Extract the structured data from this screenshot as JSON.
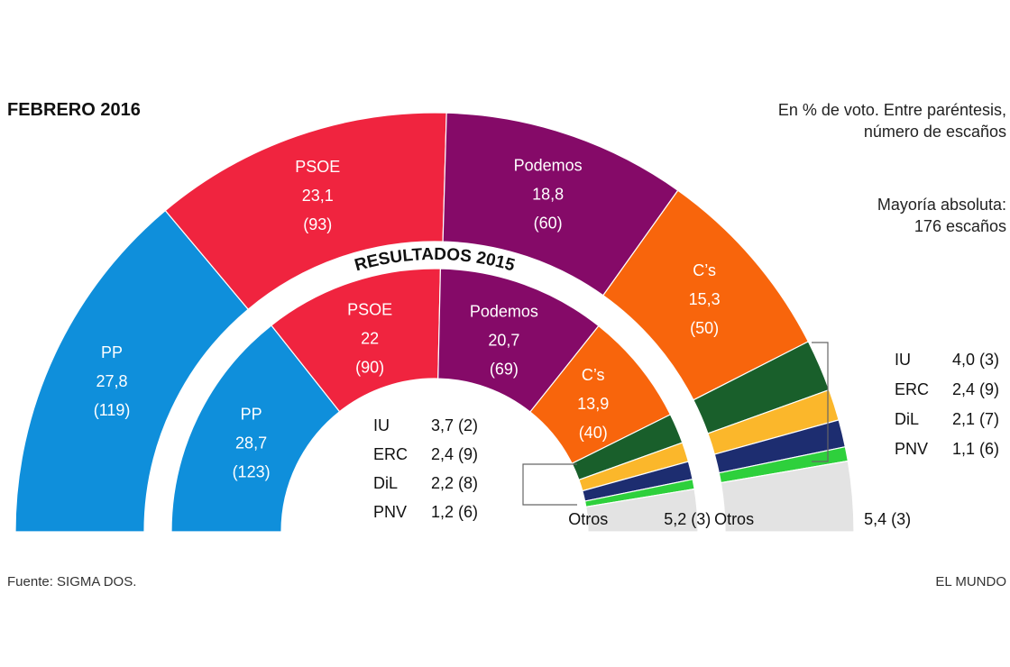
{
  "header": {
    "title": "FEBRERO 2016",
    "note_line1": "En % de voto. Entre paréntesis,",
    "note_line2": "número de escaños",
    "majority_line1": "Mayoría absoluta:",
    "majority_line2": "176 escaños"
  },
  "footer": {
    "source": "Fuente: SIGMA DOS.",
    "brand": "EL MUNDO"
  },
  "chart_data": [
    {
      "type": "pie",
      "title": "FEBRERO 2016",
      "series": [
        {
          "name": "PP",
          "value_label": "27,8",
          "seats_label": "(119)",
          "value": 27.8,
          "seats": 119,
          "color": "#0f8fdb"
        },
        {
          "name": "PSOE",
          "value_label": "23,1",
          "seats_label": "(93)",
          "value": 23.1,
          "seats": 93,
          "color": "#f0243f"
        },
        {
          "name": "Podemos",
          "value_label": "18,8",
          "seats_label": "(60)",
          "value": 18.8,
          "seats": 60,
          "color": "#850a68"
        },
        {
          "name": "C’s",
          "value_label": "15,3",
          "seats_label": "(50)",
          "value": 15.3,
          "seats": 50,
          "color": "#f8650c"
        },
        {
          "name": "IU",
          "value_label": "4,0 (3)",
          "value": 4.0,
          "seats": 3,
          "color": "#195f2b"
        },
        {
          "name": "ERC",
          "value_label": "2,4 (9)",
          "value": 2.4,
          "seats": 9,
          "color": "#fbb72b"
        },
        {
          "name": "DiL",
          "value_label": "2,1 (7)",
          "value": 2.1,
          "seats": 7,
          "color": "#1d2d70"
        },
        {
          "name": "PNV",
          "value_label": "1,1 (6)",
          "value": 1.1,
          "seats": 6,
          "color": "#2ed03c"
        },
        {
          "name": "Otros",
          "value_label": "5,4 (3)",
          "value": 5.4,
          "seats": 3,
          "color": "#e3e3e3"
        }
      ]
    },
    {
      "type": "pie",
      "title": "RESULTADOS 2015",
      "series": [
        {
          "name": "PP",
          "value_label": "28,7",
          "seats_label": "(123)",
          "value": 28.7,
          "seats": 123,
          "color": "#0f8fdb"
        },
        {
          "name": "PSOE",
          "value_label": "22",
          "seats_label": "(90)",
          "value": 22,
          "seats": 90,
          "color": "#f0243f"
        },
        {
          "name": "Podemos",
          "value_label": "20,7",
          "seats_label": "(69)",
          "value": 20.7,
          "seats": 69,
          "color": "#850a68"
        },
        {
          "name": "C’s",
          "value_label": "13,9",
          "seats_label": "(40)",
          "value": 13.9,
          "seats": 40,
          "color": "#f8650c"
        },
        {
          "name": "IU",
          "value_label": "3,7 (2)",
          "value": 3.7,
          "seats": 2,
          "color": "#195f2b"
        },
        {
          "name": "ERC",
          "value_label": "2,4 (9)",
          "value": 2.4,
          "seats": 9,
          "color": "#fbb72b"
        },
        {
          "name": "DiL",
          "value_label": "2,2 (8)",
          "value": 2.2,
          "seats": 8,
          "color": "#1d2d70"
        },
        {
          "name": "PNV",
          "value_label": "1,2 (6)",
          "value": 1.2,
          "seats": 6,
          "color": "#2ed03c"
        },
        {
          "name": "Otros",
          "value_label": "5,2 (3)",
          "value": 5.2,
          "seats": 3,
          "color": "#e3e3e3"
        }
      ]
    }
  ]
}
